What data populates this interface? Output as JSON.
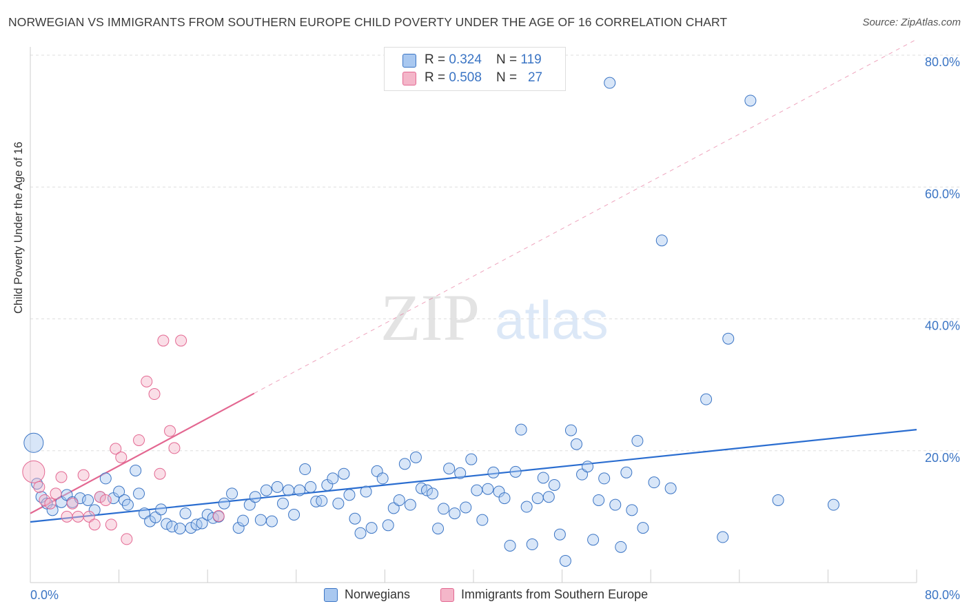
{
  "title": "NORWEGIAN VS IMMIGRANTS FROM SOUTHERN EUROPE CHILD POVERTY UNDER THE AGE OF 16 CORRELATION CHART",
  "source": "Source: ZipAtlas.com",
  "watermark": {
    "zip": "ZIP",
    "atlas": "atlas"
  },
  "colors": {
    "blue": "#3a74c4",
    "blue_fill": "#a9c8f0",
    "blue_line": "#2a6dd0",
    "pink": "#e36791",
    "pink_fill": "#f4b6c9",
    "grid": "#dddddd"
  },
  "legend_top": [
    {
      "r_label": "R = ",
      "r_value": "0.324",
      "n_label": "N = ",
      "n_value": "119"
    },
    {
      "r_label": "R = ",
      "r_value": "0.508",
      "n_label": "N = ",
      "n_value": "27"
    }
  ],
  "legend_bottom": [
    "Norwegians",
    "Immigrants from Southern Europe"
  ],
  "chart_data": {
    "type": "scatter",
    "xlabel": "",
    "ylabel": "Child Poverty Under the Age of 16",
    "xlim": [
      0,
      80
    ],
    "ylim": [
      0,
      80
    ],
    "x_tick_labels": [
      "0.0%",
      "80.0%"
    ],
    "y_tick_labels": [
      "20.0%",
      "40.0%",
      "60.0%",
      "80.0%"
    ],
    "y_ticks": [
      20,
      40,
      60,
      80
    ],
    "grid": true,
    "series": [
      {
        "name": "Norwegians",
        "r": 0.324,
        "n": 119,
        "trend": {
          "x": [
            0,
            80
          ],
          "y": [
            9.2,
            23.2
          ]
        },
        "points": [
          [
            0.3,
            21.2
          ],
          [
            0.6,
            15.0
          ],
          [
            1.0,
            13.0
          ],
          [
            1.5,
            12.0
          ],
          [
            2.0,
            11.0
          ],
          [
            2.8,
            12.2
          ],
          [
            3.3,
            13.3
          ],
          [
            3.8,
            12.2
          ],
          [
            4.5,
            12.8
          ],
          [
            5.2,
            12.5
          ],
          [
            5.8,
            11.0
          ],
          [
            6.3,
            13.0
          ],
          [
            6.8,
            15.8
          ],
          [
            7.5,
            12.8
          ],
          [
            8.0,
            13.8
          ],
          [
            8.5,
            12.5
          ],
          [
            8.8,
            11.8
          ],
          [
            9.5,
            17.0
          ],
          [
            9.8,
            13.5
          ],
          [
            10.3,
            10.5
          ],
          [
            10.8,
            9.3
          ],
          [
            11.3,
            9.9
          ],
          [
            11.8,
            11.1
          ],
          [
            12.3,
            8.9
          ],
          [
            12.8,
            8.5
          ],
          [
            13.5,
            8.2
          ],
          [
            14.0,
            10.5
          ],
          [
            14.5,
            8.3
          ],
          [
            15.0,
            8.8
          ],
          [
            15.5,
            9.0
          ],
          [
            16.0,
            10.3
          ],
          [
            16.5,
            9.8
          ],
          [
            17.0,
            10.0
          ],
          [
            17.5,
            12.0
          ],
          [
            18.2,
            13.5
          ],
          [
            18.8,
            8.3
          ],
          [
            19.2,
            9.4
          ],
          [
            19.8,
            11.8
          ],
          [
            20.3,
            13.0
          ],
          [
            20.8,
            9.5
          ],
          [
            21.3,
            14.0
          ],
          [
            21.8,
            9.3
          ],
          [
            22.3,
            14.5
          ],
          [
            22.8,
            12.0
          ],
          [
            23.3,
            14.0
          ],
          [
            23.8,
            10.3
          ],
          [
            24.3,
            14.0
          ],
          [
            24.8,
            17.2
          ],
          [
            25.3,
            14.5
          ],
          [
            25.8,
            12.3
          ],
          [
            26.3,
            12.4
          ],
          [
            26.8,
            14.8
          ],
          [
            27.3,
            15.8
          ],
          [
            27.8,
            12.0
          ],
          [
            28.3,
            16.5
          ],
          [
            28.8,
            13.3
          ],
          [
            29.3,
            9.7
          ],
          [
            29.8,
            7.5
          ],
          [
            30.3,
            13.8
          ],
          [
            30.8,
            8.3
          ],
          [
            31.3,
            16.9
          ],
          [
            31.8,
            15.8
          ],
          [
            32.3,
            8.7
          ],
          [
            32.8,
            11.3
          ],
          [
            33.3,
            12.5
          ],
          [
            33.8,
            18.0
          ],
          [
            34.3,
            11.8
          ],
          [
            34.8,
            19.0
          ],
          [
            35.3,
            14.3
          ],
          [
            35.8,
            14.0
          ],
          [
            36.3,
            13.5
          ],
          [
            36.8,
            8.2
          ],
          [
            37.3,
            11.2
          ],
          [
            37.8,
            17.3
          ],
          [
            38.3,
            10.5
          ],
          [
            38.8,
            16.6
          ],
          [
            39.3,
            11.4
          ],
          [
            39.8,
            18.7
          ],
          [
            40.3,
            14.0
          ],
          [
            40.8,
            9.5
          ],
          [
            41.3,
            14.2
          ],
          [
            41.8,
            16.7
          ],
          [
            42.3,
            13.8
          ],
          [
            42.8,
            12.8
          ],
          [
            43.3,
            5.6
          ],
          [
            43.8,
            16.8
          ],
          [
            44.3,
            23.2
          ],
          [
            44.8,
            11.5
          ],
          [
            45.3,
            5.8
          ],
          [
            45.8,
            12.8
          ],
          [
            46.3,
            15.9
          ],
          [
            46.8,
            13.0
          ],
          [
            47.3,
            14.8
          ],
          [
            47.8,
            7.3
          ],
          [
            48.3,
            3.3
          ],
          [
            48.8,
            23.1
          ],
          [
            49.3,
            21.0
          ],
          [
            49.8,
            16.4
          ],
          [
            50.3,
            17.6
          ],
          [
            50.8,
            6.5
          ],
          [
            51.3,
            12.5
          ],
          [
            51.8,
            15.8
          ],
          [
            52.3,
            75.8
          ],
          [
            52.8,
            11.8
          ],
          [
            53.3,
            5.4
          ],
          [
            53.8,
            16.7
          ],
          [
            54.3,
            11.0
          ],
          [
            54.8,
            21.5
          ],
          [
            55.3,
            8.3
          ],
          [
            56.3,
            15.2
          ],
          [
            57.0,
            51.9
          ],
          [
            57.8,
            14.3
          ],
          [
            61.0,
            27.8
          ],
          [
            62.5,
            6.9
          ],
          [
            63.0,
            37.0
          ],
          [
            65.0,
            73.1
          ],
          [
            67.5,
            12.5
          ],
          [
            72.5,
            11.8
          ]
        ]
      },
      {
        "name": "Immigrants from Southern Europe",
        "r": 0.508,
        "n": 27,
        "trend": {
          "x": [
            0,
            20.2
          ],
          "y": [
            10.5,
            28.7
          ]
        },
        "trend_dashed": {
          "x": [
            20.2,
            80
          ],
          "y": [
            28.7,
            82.4
          ]
        },
        "points": [
          [
            0.3,
            16.8
          ],
          [
            0.8,
            14.5
          ],
          [
            1.3,
            12.5
          ],
          [
            1.8,
            12.0
          ],
          [
            2.3,
            13.5
          ],
          [
            2.8,
            16.0
          ],
          [
            3.3,
            10.0
          ],
          [
            3.8,
            12.0
          ],
          [
            4.3,
            10.0
          ],
          [
            4.8,
            16.3
          ],
          [
            5.3,
            10.0
          ],
          [
            5.8,
            8.8
          ],
          [
            6.3,
            13.0
          ],
          [
            6.8,
            12.5
          ],
          [
            7.3,
            8.8
          ],
          [
            7.7,
            20.3
          ],
          [
            8.2,
            19.0
          ],
          [
            8.7,
            6.6
          ],
          [
            9.8,
            21.6
          ],
          [
            10.5,
            30.5
          ],
          [
            11.2,
            28.6
          ],
          [
            11.7,
            16.5
          ],
          [
            12.0,
            36.7
          ],
          [
            12.6,
            23.0
          ],
          [
            13.0,
            20.4
          ],
          [
            13.6,
            36.7
          ],
          [
            17.0,
            10.1
          ]
        ]
      }
    ]
  }
}
